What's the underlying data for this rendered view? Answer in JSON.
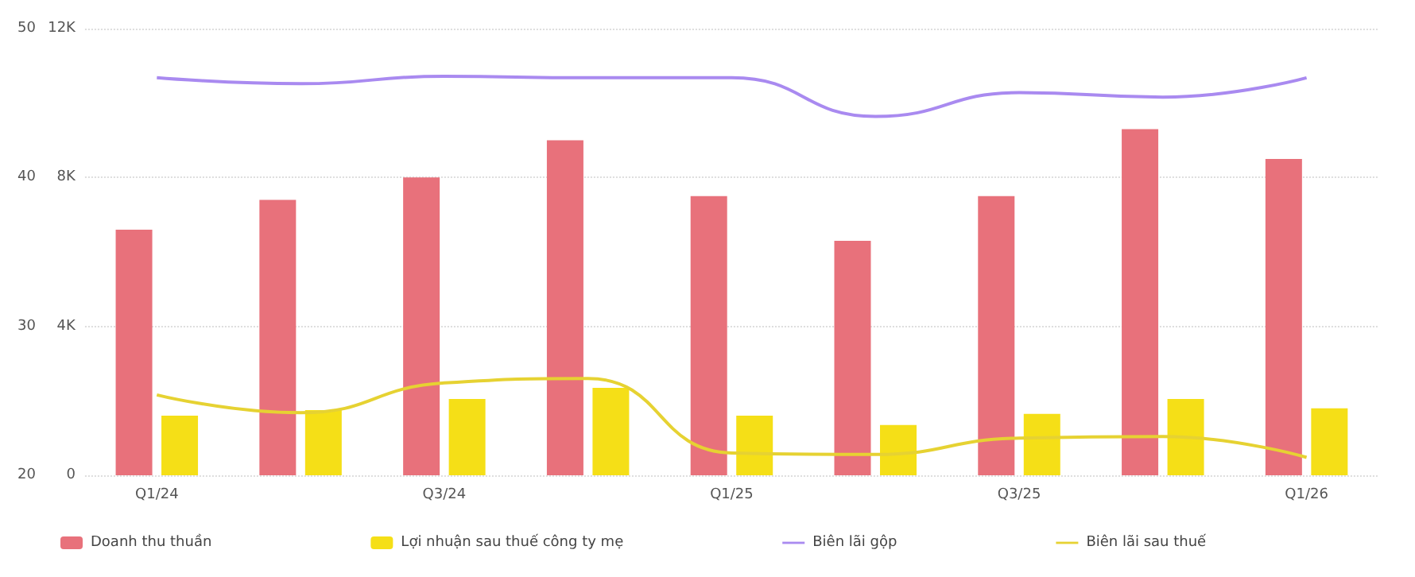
{
  "chart_data": {
    "type": "bar",
    "categories": [
      "Q1/24",
      null,
      "Q3/24",
      null,
      "Q1/25",
      null,
      "Q3/25",
      null,
      "Q1/26"
    ],
    "series": [
      {
        "name": "Doanh thu thuần",
        "color": "#e8717b",
        "values": [
          6600,
          7400,
          8000,
          9000,
          7500,
          6300,
          7500,
          9300,
          8500
        ]
      },
      {
        "name": "Lợi nhuận sau thuế công ty mẹ",
        "color": "#f5df17",
        "values": [
          1600,
          1750,
          2050,
          2350,
          1600,
          1350,
          1650,
          2050,
          1800
        ]
      },
      {
        "name": "Biên lãi gộp",
        "type": "line",
        "axis": "y2",
        "color": "#a98af0",
        "values": [
          46.7,
          46.3,
          46.8,
          46.7,
          46.7,
          44.1,
          45.7,
          45.4,
          46.7
        ]
      },
      {
        "name": "Biên lãi sau thuế",
        "type": "line",
        "axis": "y2",
        "color": "#e6d232",
        "values": [
          25.4,
          24.2,
          26.2,
          26.5,
          21.5,
          21.4,
          22.5,
          22.6,
          21.2
        ]
      }
    ],
    "ylim": [
      0,
      12000
    ],
    "yticks": [
      0,
      {
        "value": 4000,
        "label": "4K"
      },
      {
        "value": 8000,
        "label": "8K"
      },
      {
        "value": 12000,
        "label": "12K"
      }
    ],
    "y2lim": [
      20,
      50
    ],
    "y2ticks": [
      20,
      30,
      40,
      50
    ],
    "grid": "y",
    "legend": "bottom",
    "marker": "none",
    "line_style": "solid"
  }
}
